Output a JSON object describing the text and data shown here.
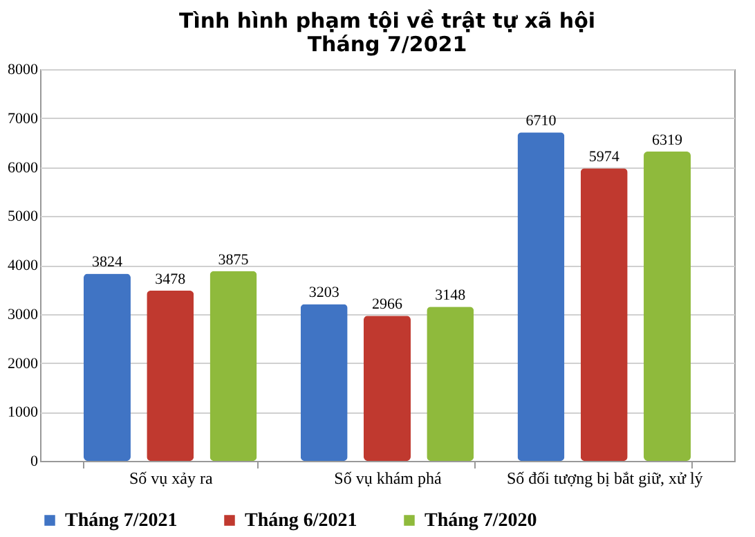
{
  "chart_data": {
    "type": "bar",
    "title": "Tình hình phạm tội về trật tự xã hội\nTháng 7/2021",
    "categories": [
      "Số vụ xảy ra",
      "Số vụ khám phá",
      "Số đối tượng bị bắt giữ, xử lý"
    ],
    "series": [
      {
        "name": "Tháng 7/2021",
        "color": "#4074c4",
        "values": [
          3824,
          3203,
          6710
        ]
      },
      {
        "name": "Tháng 6/2021",
        "color": "#c0392f",
        "values": [
          3478,
          2966,
          5974
        ]
      },
      {
        "name": "Tháng 7/2020",
        "color": "#8fba3c",
        "values": [
          3875,
          3148,
          6319
        ]
      }
    ],
    "ylim": [
      0,
      8000
    ],
    "yticks": [
      0,
      1000,
      2000,
      3000,
      4000,
      5000,
      6000,
      7000,
      8000
    ],
    "grid": "y",
    "legend": "bottom",
    "data_labels": true
  }
}
